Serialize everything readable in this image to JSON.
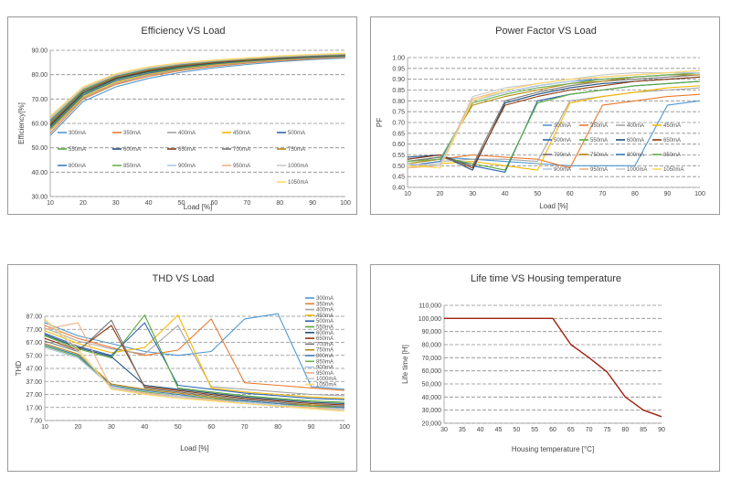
{
  "charts": {
    "efficiency": {
      "type": "line",
      "title": "Efficiency VS Load",
      "xlabel": "Load [%]",
      "ylabel": "Efficiency[%]",
      "x": [
        10,
        20,
        30,
        40,
        50,
        60,
        70,
        80,
        90,
        100
      ],
      "xlim": [
        10,
        100
      ],
      "ylim": [
        30,
        90
      ],
      "yticks": [
        30,
        40,
        50,
        60,
        70,
        80,
        90
      ],
      "ytick_labels": [
        "30.00",
        "40.00",
        "50.00",
        "60.00",
        "70.00",
        "80.00",
        "90.00"
      ],
      "legend_position": "center",
      "series": [
        {
          "name": "300mA",
          "color": "#4e97d1",
          "values": [
            55,
            69,
            75,
            78.5,
            81,
            82.8,
            84.2,
            85.3,
            86.2,
            86.8
          ]
        },
        {
          "name": "350mA",
          "color": "#e97a2f",
          "values": [
            56,
            70,
            76,
            79.3,
            81.7,
            83.4,
            84.7,
            85.7,
            86.5,
            87.1
          ]
        },
        {
          "name": "400mA",
          "color": "#a5a5a5",
          "values": [
            57,
            70.5,
            76.5,
            79.8,
            82.1,
            83.8,
            85,
            86,
            86.8,
            87.3
          ]
        },
        {
          "name": "450mA",
          "color": "#f5b800",
          "values": [
            57.5,
            71,
            77,
            80.2,
            82.5,
            84.1,
            85.3,
            86.2,
            87,
            87.5
          ]
        },
        {
          "name": "500mA",
          "color": "#2f64b5",
          "values": [
            58,
            71.5,
            77.5,
            80.6,
            82.8,
            84.4,
            85.5,
            86.4,
            87.1,
            87.6
          ]
        },
        {
          "name": "550mA",
          "color": "#57a83a",
          "values": [
            58.5,
            72,
            78,
            81,
            83.1,
            84.6,
            85.7,
            86.6,
            87.3,
            87.8
          ]
        },
        {
          "name": "600mA",
          "color": "#1f4e79",
          "values": [
            59,
            72.5,
            78.3,
            81.3,
            83.4,
            84.8,
            85.9,
            86.7,
            87.4,
            87.9
          ]
        },
        {
          "name": "650mA",
          "color": "#8b3a0f",
          "values": [
            59.5,
            73,
            78.6,
            81.6,
            83.6,
            85,
            86,
            86.8,
            87.5,
            88
          ]
        },
        {
          "name": "700mA",
          "color": "#767676",
          "values": [
            60,
            73.2,
            78.9,
            81.9,
            83.8,
            85.2,
            86.2,
            87,
            87.6,
            88.1
          ]
        },
        {
          "name": "750mA",
          "color": "#b8860b",
          "values": [
            60.5,
            73.5,
            79.1,
            82.1,
            84,
            85.3,
            86.3,
            87.1,
            87.7,
            88.2
          ]
        },
        {
          "name": "800mA",
          "color": "#3a7fc0",
          "values": [
            61,
            73.8,
            79.4,
            82.3,
            84.2,
            85.5,
            86.4,
            87.2,
            87.8,
            88.3
          ]
        },
        {
          "name": "850mA",
          "color": "#6fb04a",
          "values": [
            61.5,
            74,
            79.6,
            82.5,
            84.4,
            85.6,
            86.5,
            87.3,
            87.9,
            88.4
          ]
        },
        {
          "name": "900mA",
          "color": "#b4c7e7",
          "values": [
            62,
            74.3,
            79.8,
            82.7,
            84.5,
            85.7,
            86.6,
            87.4,
            88,
            88.5
          ]
        },
        {
          "name": "950mA",
          "color": "#f4b183",
          "values": [
            62.3,
            74.5,
            80,
            82.9,
            84.6,
            85.8,
            86.7,
            87.5,
            88.1,
            88.6
          ]
        },
        {
          "name": "1000mA",
          "color": "#c9c9c9",
          "values": [
            62.6,
            74.7,
            80.2,
            83,
            84.7,
            85.9,
            86.8,
            87.6,
            88.2,
            88.7
          ]
        },
        {
          "name": "1050mA",
          "color": "#ffd966",
          "values": [
            63,
            75,
            80.4,
            83.2,
            84.9,
            86,
            86.9,
            87.7,
            88.3,
            88.8
          ]
        }
      ]
    },
    "power_factor": {
      "type": "line",
      "title": "Power Factor VS Load",
      "xlabel": "Load [%]",
      "ylabel": "PF",
      "x": [
        10,
        20,
        30,
        40,
        50,
        60,
        70,
        80,
        90,
        100
      ],
      "xlim": [
        10,
        100
      ],
      "ylim": [
        0.4,
        1.0
      ],
      "yticks": [
        0.4,
        0.45,
        0.5,
        0.55,
        0.6,
        0.65,
        0.7,
        0.75,
        0.8,
        0.85,
        0.9,
        0.95,
        1.0
      ],
      "ytick_labels": [
        "0.40",
        "0.45",
        "0.50",
        "0.55",
        "0.60",
        "0.65",
        "0.70",
        "0.75",
        "0.80",
        "0.85",
        "0.90",
        "0.95",
        "1.00"
      ],
      "legend_position": "right",
      "series": [
        {
          "name": "300mA",
          "color": "#4e97d1",
          "values": [
            0.52,
            0.54,
            0.53,
            0.52,
            0.51,
            0.5,
            0.5,
            0.5,
            0.78,
            0.8
          ]
        },
        {
          "name": "350mA",
          "color": "#e97a2f",
          "values": [
            0.51,
            0.53,
            0.55,
            0.54,
            0.53,
            0.49,
            0.78,
            0.8,
            0.82,
            0.83
          ]
        },
        {
          "name": "400mA",
          "color": "#a5a5a5",
          "values": [
            0.5,
            0.52,
            0.53,
            0.53,
            0.52,
            0.8,
            0.82,
            0.84,
            0.85,
            0.86
          ]
        },
        {
          "name": "450mA",
          "color": "#f5b800",
          "values": [
            0.49,
            0.51,
            0.52,
            0.5,
            0.48,
            0.79,
            0.82,
            0.84,
            0.86,
            0.87
          ]
        },
        {
          "name": "500mA",
          "color": "#2f64b5",
          "values": [
            0.53,
            0.55,
            0.5,
            0.47,
            0.8,
            0.83,
            0.85,
            0.87,
            0.88,
            0.89
          ]
        },
        {
          "name": "550mA",
          "color": "#57a83a",
          "values": [
            0.52,
            0.54,
            0.51,
            0.48,
            0.79,
            0.83,
            0.85,
            0.87,
            0.88,
            0.89
          ]
        },
        {
          "name": "600mA",
          "color": "#1f4e79",
          "values": [
            0.54,
            0.55,
            0.48,
            0.79,
            0.83,
            0.86,
            0.88,
            0.89,
            0.9,
            0.91
          ]
        },
        {
          "name": "650mA",
          "color": "#8b3a0f",
          "values": [
            0.53,
            0.55,
            0.49,
            0.78,
            0.82,
            0.85,
            0.87,
            0.89,
            0.9,
            0.91
          ]
        },
        {
          "name": "700mA",
          "color": "#767676",
          "values": [
            0.52,
            0.54,
            0.5,
            0.8,
            0.84,
            0.87,
            0.89,
            0.9,
            0.91,
            0.92
          ]
        },
        {
          "name": "750mA",
          "color": "#b8860b",
          "values": [
            0.51,
            0.53,
            0.78,
            0.82,
            0.85,
            0.88,
            0.89,
            0.91,
            0.92,
            0.92
          ]
        },
        {
          "name": "800mA",
          "color": "#3a7fc0",
          "values": [
            0.5,
            0.52,
            0.8,
            0.84,
            0.87,
            0.89,
            0.9,
            0.91,
            0.92,
            0.93
          ]
        },
        {
          "name": "850mA",
          "color": "#6fb04a",
          "values": [
            0.52,
            0.53,
            0.79,
            0.83,
            0.86,
            0.88,
            0.9,
            0.91,
            0.92,
            0.93
          ]
        },
        {
          "name": "900mA",
          "color": "#b4c7e7",
          "values": [
            0.5,
            0.51,
            0.8,
            0.84,
            0.87,
            0.89,
            0.91,
            0.92,
            0.93,
            0.93
          ]
        },
        {
          "name": "950mA",
          "color": "#f4b183",
          "values": [
            0.49,
            0.5,
            0.81,
            0.85,
            0.88,
            0.9,
            0.91,
            0.92,
            0.93,
            0.94
          ]
        },
        {
          "name": "1000mA",
          "color": "#c9c9c9",
          "values": [
            0.51,
            0.5,
            0.82,
            0.86,
            0.88,
            0.9,
            0.92,
            0.93,
            0.93,
            0.94
          ]
        },
        {
          "name": "1050mA",
          "color": "#ffd966",
          "values": [
            0.5,
            0.49,
            0.8,
            0.85,
            0.88,
            0.9,
            0.91,
            0.92,
            0.93,
            0.94
          ]
        }
      ]
    },
    "thd": {
      "type": "line",
      "title": "THD VS Load",
      "xlabel": "Load [%]",
      "ylabel": "THD",
      "x": [
        10,
        20,
        30,
        40,
        50,
        60,
        70,
        80,
        90,
        100
      ],
      "xlim": [
        10,
        100
      ],
      "ylim": [
        7,
        87
      ],
      "yticks": [
        7,
        17,
        27,
        37,
        47,
        57,
        67,
        77,
        87
      ],
      "ytick_labels": [
        "7.00",
        "17.00",
        "27.00",
        "37.00",
        "47.00",
        "57.00",
        "67.00",
        "77.00",
        "87.00"
      ],
      "legend_position": "right",
      "series": [
        {
          "name": "300mA",
          "color": "#4e97d1",
          "values": [
            82,
            72,
            66,
            60,
            57,
            60,
            85,
            89,
            33,
            31
          ]
        },
        {
          "name": "350mA",
          "color": "#e97a2f",
          "values": [
            80,
            70,
            63,
            57,
            61,
            85,
            36,
            34,
            32,
            30
          ]
        },
        {
          "name": "400mA",
          "color": "#a5a5a5",
          "values": [
            78,
            68,
            62,
            58,
            80,
            33,
            31,
            29,
            27,
            26
          ]
        },
        {
          "name": "450mA",
          "color": "#f5b800",
          "values": [
            76,
            66,
            59,
            63,
            88,
            32,
            29,
            27,
            25,
            24
          ]
        },
        {
          "name": "500mA",
          "color": "#2f64b5",
          "values": [
            74,
            64,
            57,
            82,
            34,
            31,
            28,
            26,
            24,
            23
          ]
        },
        {
          "name": "550mA",
          "color": "#57a83a",
          "values": [
            72,
            62,
            55,
            88,
            32,
            29,
            26,
            24,
            22,
            21
          ]
        },
        {
          "name": "600mA",
          "color": "#1f4e79",
          "values": [
            73,
            63,
            56,
            34,
            31,
            28,
            25,
            23,
            21,
            20
          ]
        },
        {
          "name": "650mA",
          "color": "#8b3a0f",
          "values": [
            70,
            61,
            80,
            33,
            30,
            27,
            24,
            22,
            20,
            19
          ]
        },
        {
          "name": "700mA",
          "color": "#767676",
          "values": [
            68,
            60,
            84,
            32,
            29,
            26,
            23,
            21,
            19,
            18
          ]
        },
        {
          "name": "750mA",
          "color": "#b8860b",
          "values": [
            66,
            58,
            35,
            31,
            28,
            25,
            22,
            20,
            19,
            17
          ]
        },
        {
          "name": "800mA",
          "color": "#3a7fc0",
          "values": [
            65,
            57,
            34,
            30,
            27,
            24,
            22,
            20,
            18,
            17
          ]
        },
        {
          "name": "850mA",
          "color": "#6fb04a",
          "values": [
            64,
            56,
            33,
            29,
            26,
            24,
            21,
            19,
            18,
            16
          ]
        },
        {
          "name": "900mA",
          "color": "#b4c7e7",
          "values": [
            63,
            55,
            33,
            28,
            26,
            23,
            21,
            19,
            17,
            16
          ]
        },
        {
          "name": "950mA",
          "color": "#f4b183",
          "values": [
            77,
            82,
            32,
            28,
            25,
            23,
            20,
            18,
            17,
            15
          ]
        },
        {
          "name": "1000mA",
          "color": "#c9c9c9",
          "values": [
            84,
            60,
            32,
            27,
            25,
            22,
            20,
            18,
            16,
            15
          ]
        },
        {
          "name": "1050mA",
          "color": "#ffd966",
          "values": [
            85,
            62,
            31,
            27,
            24,
            22,
            20,
            18,
            16,
            14
          ]
        }
      ]
    },
    "lifetime": {
      "type": "line",
      "title": "Life time VS Housing temperature",
      "xlabel": "Housing temperature [°C]",
      "ylabel": "Life time [H]",
      "x": [
        30,
        35,
        40,
        45,
        50,
        55,
        60,
        65,
        70,
        75,
        80,
        85,
        90
      ],
      "xlim": [
        30,
        90
      ],
      "ylim": [
        20000,
        110000
      ],
      "yticks": [
        20000,
        30000,
        40000,
        50000,
        60000,
        70000,
        80000,
        90000,
        100000,
        110000
      ],
      "ytick_labels": [
        "20,000",
        "30,000",
        "40,000",
        "50,000",
        "60,000",
        "70,000",
        "80,000",
        "90,000",
        "100,000",
        "110,000"
      ],
      "series": [
        {
          "name": "",
          "color": "#a31f0e",
          "values": [
            100000,
            100000,
            100000,
            100000,
            100000,
            100000,
            100000,
            80000,
            70000,
            59000,
            40000,
            30000,
            25000
          ]
        }
      ]
    }
  }
}
